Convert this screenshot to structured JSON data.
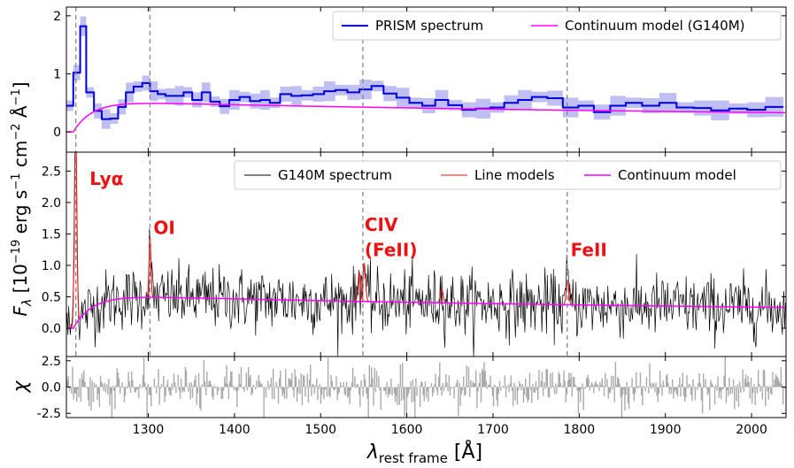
{
  "chart_data": [
    {
      "type": "line",
      "panel": "top",
      "x_range": [
        1205,
        2040
      ],
      "ylim": [
        -0.35,
        2.15
      ],
      "yticks": [
        0,
        1,
        2
      ],
      "series": [
        {
          "name": "PRISM spectrum",
          "color": "#0000dd",
          "band_color": "#a9a9f0",
          "edges": [
            1205,
            1213,
            1221,
            1228,
            1237,
            1246,
            1256,
            1265,
            1274,
            1283,
            1293,
            1302,
            1311,
            1320,
            1331,
            1341,
            1351,
            1362,
            1372,
            1383,
            1394,
            1406,
            1418,
            1430,
            1441,
            1453,
            1466,
            1478,
            1491,
            1504,
            1517,
            1531,
            1545,
            1559,
            1573,
            1588,
            1603,
            1618,
            1633,
            1648,
            1664,
            1680,
            1697,
            1713,
            1729,
            1745,
            1763,
            1781,
            1799,
            1817,
            1836,
            1854,
            1873,
            1893,
            1913,
            1933,
            1953,
            1974,
            1995,
            2016,
            2037
          ],
          "values": [
            0.45,
            1.02,
            1.82,
            0.68,
            0.36,
            0.22,
            0.23,
            0.43,
            0.68,
            0.78,
            0.84,
            0.7,
            0.65,
            0.62,
            0.62,
            0.68,
            0.55,
            0.68,
            0.52,
            0.44,
            0.55,
            0.6,
            0.53,
            0.55,
            0.5,
            0.65,
            0.62,
            0.63,
            0.65,
            0.7,
            0.72,
            0.68,
            0.73,
            0.79,
            0.66,
            0.59,
            0.5,
            0.45,
            0.55,
            0.46,
            0.38,
            0.4,
            0.42,
            0.5,
            0.55,
            0.6,
            0.58,
            0.42,
            0.45,
            0.34,
            0.45,
            0.5,
            0.45,
            0.5,
            0.42,
            0.41,
            0.37,
            0.4,
            0.38,
            0.43
          ]
        },
        {
          "name": "Continuum model (G140M)",
          "color": "#ff00ff"
        }
      ],
      "continuum": {
        "amplitude": 0.5,
        "cutoff": 1216,
        "tau": 22,
        "slope": -0.23
      },
      "vlines": [
        1216,
        1302,
        1549,
        1786
      ]
    },
    {
      "type": "line",
      "panel": "middle",
      "x_range": [
        1205,
        2040
      ],
      "ylim": [
        -0.45,
        2.8
      ],
      "yticks": [
        0.0,
        0.5,
        1.0,
        1.5,
        2.0,
        2.5
      ],
      "ylabel": "F_λ [10^-19 erg s^-1 cm^-2 Å^-1]",
      "series": [
        {
          "name": "G140M spectrum",
          "color": "#000000"
        },
        {
          "name": "Line models",
          "color": "#ee1111"
        },
        {
          "name": "Continuum model",
          "color": "#ff00ff"
        }
      ],
      "noise_sigma": 0.25,
      "lines": [
        {
          "center": 1215.7,
          "amplitude": 3.2,
          "width": 1.4
        },
        {
          "center": 1302.0,
          "amplitude": 0.95,
          "width": 1.1
        },
        {
          "center": 1545.0,
          "amplitude": 0.45,
          "width": 1.6
        },
        {
          "center": 1550.5,
          "amplitude": 0.6,
          "width": 1.6
        },
        {
          "center": 1640.5,
          "amplitude": 0.22,
          "width": 1.6
        },
        {
          "center": 1786.5,
          "amplitude": 0.38,
          "width": 1.5
        }
      ],
      "annotations": [
        {
          "text": "Lyα",
          "x": 1232,
          "y": 2.28
        },
        {
          "text": "OI",
          "x": 1306,
          "y": 1.5
        },
        {
          "text": "CIV",
          "x": 1551,
          "y": 1.55
        },
        {
          "text": "(FeII)",
          "x": 1551,
          "y": 1.15
        },
        {
          "text": "FeII",
          "x": 1790,
          "y": 1.15
        }
      ],
      "vlines": [
        1216,
        1302,
        1549,
        1786
      ]
    },
    {
      "type": "bar",
      "panel": "bottom",
      "x_range": [
        1205,
        2040
      ],
      "ylim": [
        -2.9,
        2.9
      ],
      "yticks": [
        -2.5,
        0.0,
        2.5
      ],
      "ylabel": "χ",
      "color": "#aaaaaa",
      "noise_sigma": 1.0
    }
  ],
  "axes": {
    "xticks": [
      1300,
      1400,
      1500,
      1600,
      1700,
      1800,
      1900,
      2000
    ],
    "xlabel": "λ_rest frame [Å]",
    "ylabel_top": "F_λ [10^-19 erg s^-1 cm^-2 Å^-1]"
  },
  "labels": {
    "xlabel_main": "λ",
    "xlabel_sub": "rest frame",
    "xlabel_unit": " [Å]",
    "ylabel_f": "F",
    "ylabel_lambda": "λ",
    "ylabel_unit_pre": " [10",
    "ylabel_exp1": "−19",
    "ylabel_mid1": " erg s",
    "ylabel_exp2": "−1",
    "ylabel_mid2": " cm",
    "ylabel_exp3": "−2",
    "ylabel_mid3": " Å",
    "ylabel_exp4": "−1",
    "ylabel_end": "]",
    "chi": "χ"
  },
  "colors": {
    "vline": "#888888",
    "axis": "#000000"
  }
}
